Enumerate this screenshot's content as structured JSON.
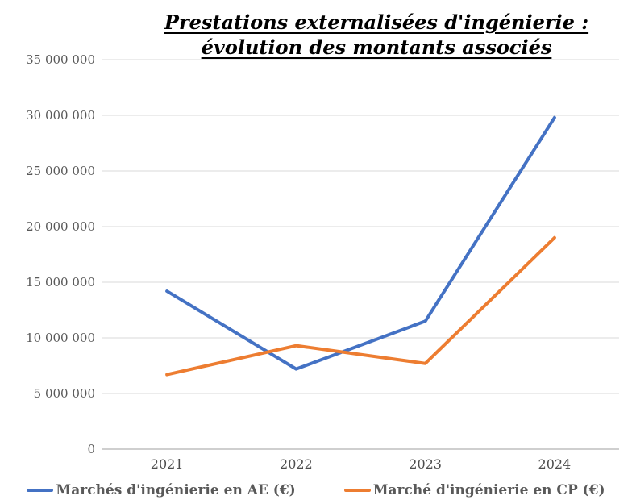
{
  "chart_data": {
    "type": "line",
    "title": "Prestations externalisées d'ingénierie : évolution des montants associés",
    "title_lines": [
      "Prestations externalisées d'ingénierie :",
      "évolution des montants associés"
    ],
    "xlabel": "",
    "ylabel": "",
    "categories": [
      "2021",
      "2022",
      "2023",
      "2024"
    ],
    "series": [
      {
        "name": "Marchés d'ingénierie en AE (€)",
        "color": "#4472C4",
        "values": [
          14200000,
          7200000,
          11500000,
          29800000
        ]
      },
      {
        "name": "Marché d'ingénierie en CP (€)",
        "color": "#ED7D31",
        "values": [
          6700000,
          9300000,
          7700000,
          19000000
        ]
      }
    ],
    "ylim": [
      0,
      35000000
    ],
    "y_ticks": [
      0,
      5000000,
      10000000,
      15000000,
      20000000,
      25000000,
      30000000,
      35000000
    ],
    "y_tick_labels": [
      "0",
      "5 000 000",
      "10 000 000",
      "15 000 000",
      "20 000 000",
      "25 000 000",
      "30 000 000",
      "35 000 000"
    ],
    "grid": "horizontal",
    "legend_position": "bottom",
    "colors": {
      "gridline": "#D9D9D9",
      "axis_line": "#BFBFBF",
      "tick_label": "#595959",
      "title": "#000000"
    }
  }
}
